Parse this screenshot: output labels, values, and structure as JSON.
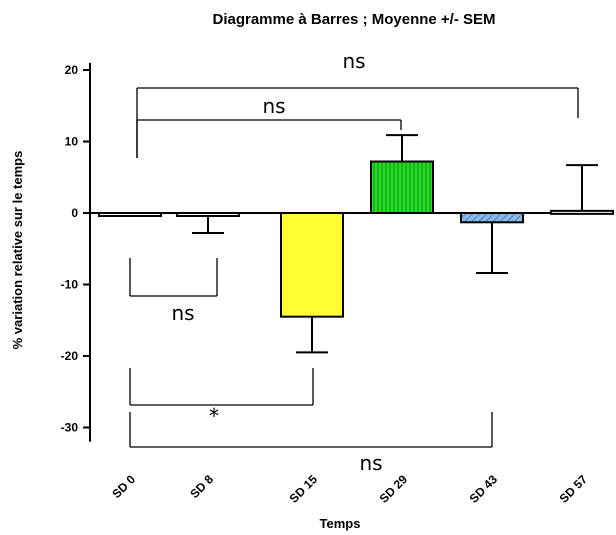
{
  "chart_data": {
    "type": "bar",
    "title": "Diagramme à Barres ; Moyenne +/- SEM",
    "xlabel": "Temps",
    "ylabel": "% variation relative sur le temps",
    "ylim": [
      -32,
      21
    ],
    "yticks": [
      20,
      10,
      0,
      -10,
      -20,
      -30
    ],
    "categories": [
      "SD 0",
      "SD 8",
      "SD 15",
      "SD 29",
      "SD 43",
      "SD 57"
    ],
    "values": [
      0,
      -0.3,
      -14.5,
      7.2,
      -1.3,
      0.3
    ],
    "errors": [
      0,
      2.5,
      5,
      3.7,
      7.1,
      6.4
    ],
    "colors": [
      "#ffffff",
      "#ffffff",
      "#ffff33",
      "#22dd22",
      "#88b8e8",
      "#ffffff"
    ],
    "annotations": [
      {
        "label": "ns",
        "from": "SD 0",
        "to": "SD 57",
        "type": "top"
      },
      {
        "label": "ns",
        "from": "SD 0",
        "to": "SD 29",
        "type": "top"
      },
      {
        "label": "ns",
        "from": "SD 0",
        "to": "SD 8",
        "type": "bottom"
      },
      {
        "label": "*",
        "from": "SD 0",
        "to": "SD 15",
        "type": "bottom"
      },
      {
        "label": "ns",
        "from": "SD 0",
        "to": "SD 43",
        "type": "bottom"
      }
    ]
  }
}
